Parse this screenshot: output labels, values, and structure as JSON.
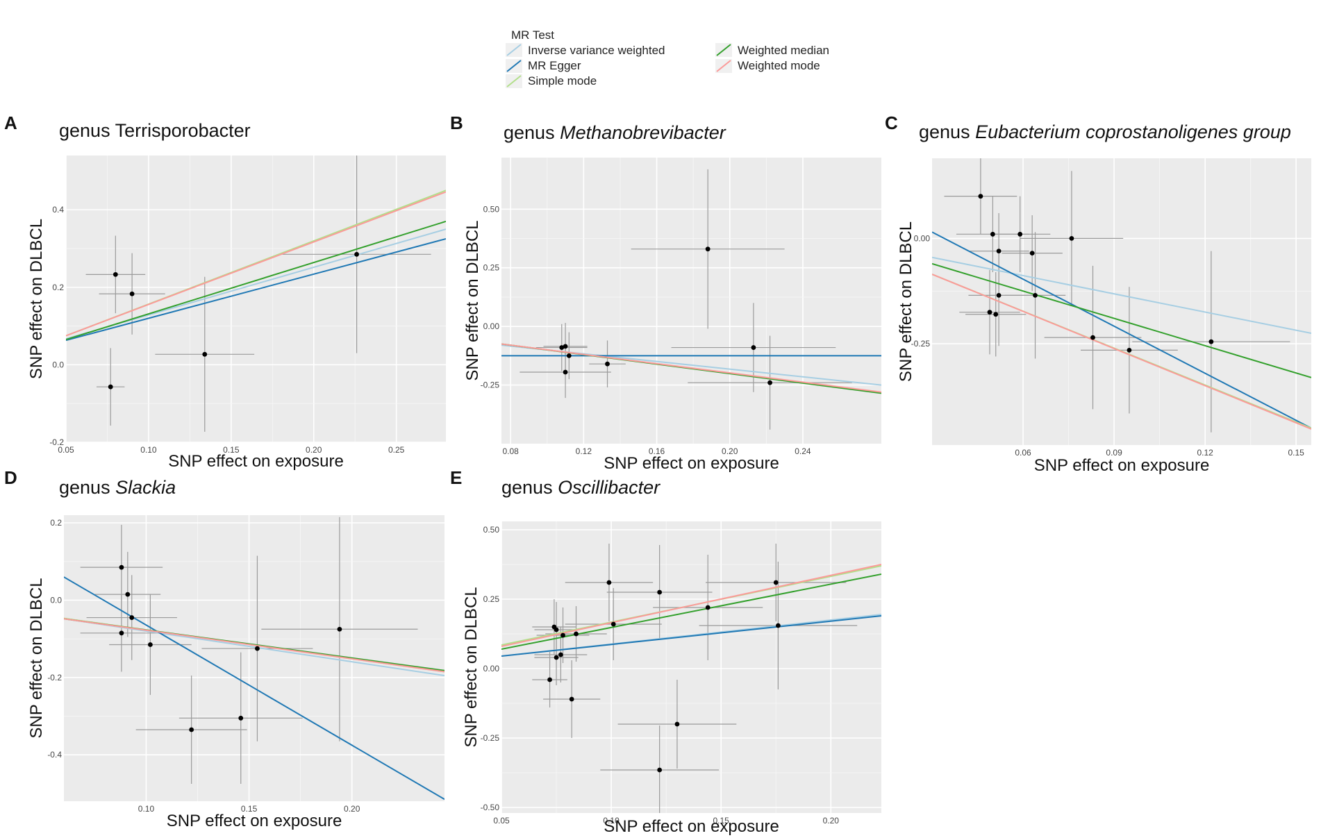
{
  "legend": {
    "title": "MR Test",
    "items": [
      {
        "label": "Inverse variance weighted",
        "color": "#a6cee3"
      },
      {
        "label": "MR Egger",
        "color": "#1f78b4"
      },
      {
        "label": "Simple mode",
        "color": "#b2df8a"
      },
      {
        "label": "Weighted median",
        "color": "#33a02c"
      },
      {
        "label": "Weighted mode",
        "color": "#fb9a99"
      }
    ]
  },
  "chart_data": [
    {
      "type": "scatter",
      "panel": "A",
      "title_prefix": "genus",
      "title_name": "Terrisporobacter",
      "title_italic": false,
      "xlabel": "SNP effect on exposure",
      "ylabel": "SNP effect on DLBCL",
      "xlim": [
        0.05,
        0.28
      ],
      "ylim": [
        -0.2,
        0.54
      ],
      "xticks": [
        0.05,
        0.1,
        0.15,
        0.2,
        0.25
      ],
      "xtick_labels": [
        "0.05",
        "0.10",
        "0.15",
        "0.20",
        "0.25"
      ],
      "yticks": [
        -0.2,
        0.0,
        0.2,
        0.4
      ],
      "ytick_labels": [
        "-0.2",
        "0.0",
        "0.2",
        "0.4"
      ],
      "points": [
        {
          "x": 0.08,
          "y": 0.233,
          "xerr": 0.018,
          "yerr": 0.1
        },
        {
          "x": 0.09,
          "y": 0.183,
          "xerr": 0.02,
          "yerr": 0.105
        },
        {
          "x": 0.077,
          "y": -0.057,
          "xerr": 0.0085,
          "yerr": 0.1
        },
        {
          "x": 0.134,
          "y": 0.027,
          "xerr": 0.03,
          "yerr": 0.2
        },
        {
          "x": 0.226,
          "y": 0.285,
          "xerr": 0.045,
          "yerr": 0.255
        }
      ],
      "lines": [
        {
          "method": "Inverse variance weighted",
          "y0": 0.067,
          "y1": 0.35
        },
        {
          "method": "MR Egger",
          "y0": 0.063,
          "y1": 0.325
        },
        {
          "method": "Simple mode",
          "y0": 0.075,
          "y1": 0.45
        },
        {
          "method": "Weighted median",
          "y0": 0.065,
          "y1": 0.37
        },
        {
          "method": "Weighted mode",
          "y0": 0.075,
          "y1": 0.446
        }
      ]
    },
    {
      "type": "scatter",
      "panel": "B",
      "title_prefix": "genus",
      "title_name": "Methanobrevibacter",
      "title_italic": true,
      "xlabel": "SNP effect on exposure",
      "ylabel": "SNP effect on DLBCL",
      "xlim": [
        0.075,
        0.283
      ],
      "ylim": [
        -0.5,
        0.72
      ],
      "xticks": [
        0.08,
        0.12,
        0.16,
        0.2,
        0.24
      ],
      "xtick_labels": [
        "0.08",
        "0.12",
        "0.16",
        "0.20",
        "0.24"
      ],
      "yticks": [
        -0.25,
        0.0,
        0.25,
        0.5
      ],
      "ytick_labels": [
        "-0.25",
        "0.00",
        "0.25",
        "0.50"
      ],
      "points": [
        {
          "x": 0.108,
          "y": -0.09,
          "xerr": 0.014,
          "yerr": 0.1
        },
        {
          "x": 0.11,
          "y": -0.085,
          "xerr": 0.012,
          "yerr": 0.1
        },
        {
          "x": 0.112,
          "y": -0.125,
          "xerr": 0.008,
          "yerr": 0.1
        },
        {
          "x": 0.11,
          "y": -0.195,
          "xerr": 0.025,
          "yerr": 0.11
        },
        {
          "x": 0.133,
          "y": -0.16,
          "xerr": 0.01,
          "yerr": 0.1
        },
        {
          "x": 0.188,
          "y": 0.33,
          "xerr": 0.042,
          "yerr": 0.34
        },
        {
          "x": 0.213,
          "y": -0.09,
          "xerr": 0.045,
          "yerr": 0.19
        },
        {
          "x": 0.222,
          "y": -0.24,
          "xerr": 0.045,
          "yerr": 0.2
        }
      ],
      "lines": [
        {
          "method": "Inverse variance weighted",
          "y0": -0.08,
          "y1": -0.25
        },
        {
          "method": "MR Egger",
          "y0": -0.125,
          "y1": -0.125
        },
        {
          "method": "Simple mode",
          "y0": -0.075,
          "y1": -0.282
        },
        {
          "method": "Weighted median",
          "y0": -0.075,
          "y1": -0.285
        },
        {
          "method": "Weighted mode",
          "y0": -0.075,
          "y1": -0.28
        }
      ]
    },
    {
      "type": "scatter",
      "panel": "C",
      "title_prefix": "genus",
      "title_name": "Eubacterium coprostanoligenes group",
      "title_italic": true,
      "xlabel": "SNP effect on exposure",
      "ylabel": "SNP effect on DLBCL",
      "xlim": [
        0.03,
        0.155
      ],
      "ylim": [
        -0.49,
        0.19
      ],
      "xticks": [
        0.06,
        0.09,
        0.12,
        0.15
      ],
      "xtick_labels": [
        "0.06",
        "0.09",
        "0.12",
        "0.15"
      ],
      "yticks": [
        -0.25,
        0.0
      ],
      "ytick_labels": [
        "-0.25",
        "0.00"
      ],
      "points": [
        {
          "x": 0.046,
          "y": 0.1,
          "xerr": 0.012,
          "yerr": 0.09
        },
        {
          "x": 0.05,
          "y": 0.01,
          "xerr": 0.012,
          "yerr": 0.09
        },
        {
          "x": 0.059,
          "y": 0.01,
          "xerr": 0.01,
          "yerr": 0.09
        },
        {
          "x": 0.052,
          "y": -0.03,
          "xerr": 0.01,
          "yerr": 0.09
        },
        {
          "x": 0.063,
          "y": -0.035,
          "xerr": 0.01,
          "yerr": 0.09
        },
        {
          "x": 0.076,
          "y": 0.0,
          "xerr": 0.017,
          "yerr": 0.16
        },
        {
          "x": 0.052,
          "y": -0.135,
          "xerr": 0.01,
          "yerr": 0.12
        },
        {
          "x": 0.064,
          "y": -0.135,
          "xerr": 0.01,
          "yerr": 0.15
        },
        {
          "x": 0.049,
          "y": -0.175,
          "xerr": 0.01,
          "yerr": 0.1
        },
        {
          "x": 0.051,
          "y": -0.18,
          "xerr": 0.01,
          "yerr": 0.1
        },
        {
          "x": 0.083,
          "y": -0.235,
          "xerr": 0.016,
          "yerr": 0.17
        },
        {
          "x": 0.095,
          "y": -0.265,
          "xerr": 0.016,
          "yerr": 0.15
        },
        {
          "x": 0.122,
          "y": -0.245,
          "xerr": 0.026,
          "yerr": 0.215
        }
      ],
      "lines": [
        {
          "method": "Inverse variance weighted",
          "y0": -0.045,
          "y1": -0.225
        },
        {
          "method": "MR Egger",
          "y0": 0.015,
          "y1": -0.45
        },
        {
          "method": "Simple mode",
          "y0": -0.085,
          "y1": -0.45
        },
        {
          "method": "Weighted median",
          "y0": -0.06,
          "y1": -0.33
        },
        {
          "method": "Weighted mode",
          "y0": -0.085,
          "y1": -0.452
        }
      ]
    },
    {
      "type": "scatter",
      "panel": "D",
      "title_prefix": "genus",
      "title_name": "Slackia",
      "title_italic": true,
      "xlabel": "SNP effect on exposure",
      "ylabel": "SNP effect on DLBCL",
      "xlim": [
        0.06,
        0.245
      ],
      "ylim": [
        -0.52,
        0.22
      ],
      "xticks": [
        0.1,
        0.15,
        0.2
      ],
      "xtick_labels": [
        "0.10",
        "0.15",
        "0.20"
      ],
      "yticks": [
        -0.4,
        -0.2,
        0.0,
        0.2
      ],
      "ytick_labels": [
        "-0.4",
        "-0.2",
        "0.0",
        "0.2"
      ],
      "points": [
        {
          "x": 0.088,
          "y": 0.085,
          "xerr": 0.02,
          "yerr": 0.11
        },
        {
          "x": 0.091,
          "y": 0.015,
          "xerr": 0.016,
          "yerr": 0.11
        },
        {
          "x": 0.093,
          "y": -0.045,
          "xerr": 0.022,
          "yerr": 0.11
        },
        {
          "x": 0.088,
          "y": -0.085,
          "xerr": 0.02,
          "yerr": 0.1
        },
        {
          "x": 0.102,
          "y": -0.115,
          "xerr": 0.02,
          "yerr": 0.13
        },
        {
          "x": 0.122,
          "y": -0.335,
          "xerr": 0.027,
          "yerr": 0.14
        },
        {
          "x": 0.146,
          "y": -0.305,
          "xerr": 0.03,
          "yerr": 0.17
        },
        {
          "x": 0.154,
          "y": -0.125,
          "xerr": 0.027,
          "yerr": 0.24
        },
        {
          "x": 0.194,
          "y": -0.075,
          "xerr": 0.038,
          "yerr": 0.29
        }
      ],
      "lines": [
        {
          "method": "Inverse variance weighted",
          "y0": -0.048,
          "y1": -0.195
        },
        {
          "method": "MR Egger",
          "y0": 0.06,
          "y1": -0.515
        },
        {
          "method": "Simple mode",
          "y0": -0.047,
          "y1": -0.185
        },
        {
          "method": "Weighted median",
          "y0": -0.048,
          "y1": -0.182
        },
        {
          "method": "Weighted mode",
          "y0": -0.048,
          "y1": -0.185
        }
      ]
    },
    {
      "type": "scatter",
      "panel": "E",
      "title_prefix": "genus",
      "title_name": "Oscillibacter",
      "title_italic": true,
      "xlabel": "SNP effect on exposure",
      "ylabel": "SNP effect on DLBCL",
      "xlim": [
        0.05,
        0.223
      ],
      "ylim": [
        -0.52,
        0.53
      ],
      "xticks": [
        0.05,
        0.1,
        0.15,
        0.2
      ],
      "xtick_labels": [
        "0.05",
        "0.10",
        "0.15",
        "0.20"
      ],
      "yticks": [
        -0.5,
        -0.25,
        0.0,
        0.25,
        0.5
      ],
      "ytick_labels": [
        "-0.50",
        "-0.25",
        "0.00",
        "0.25",
        "0.50"
      ],
      "points": [
        {
          "x": 0.072,
          "y": -0.04,
          "xerr": 0.008,
          "yerr": 0.1
        },
        {
          "x": 0.074,
          "y": 0.15,
          "xerr": 0.01,
          "yerr": 0.1
        },
        {
          "x": 0.075,
          "y": 0.14,
          "xerr": 0.01,
          "yerr": 0.1
        },
        {
          "x": 0.075,
          "y": 0.04,
          "xerr": 0.01,
          "yerr": 0.1
        },
        {
          "x": 0.077,
          "y": 0.05,
          "xerr": 0.012,
          "yerr": 0.1
        },
        {
          "x": 0.078,
          "y": 0.12,
          "xerr": 0.012,
          "yerr": 0.1
        },
        {
          "x": 0.082,
          "y": -0.11,
          "xerr": 0.013,
          "yerr": 0.14
        },
        {
          "x": 0.084,
          "y": 0.125,
          "xerr": 0.014,
          "yerr": 0.1
        },
        {
          "x": 0.099,
          "y": 0.31,
          "xerr": 0.02,
          "yerr": 0.14
        },
        {
          "x": 0.101,
          "y": 0.16,
          "xerr": 0.022,
          "yerr": 0.13
        },
        {
          "x": 0.122,
          "y": 0.275,
          "xerr": 0.024,
          "yerr": 0.17
        },
        {
          "x": 0.13,
          "y": -0.2,
          "xerr": 0.027,
          "yerr": 0.16
        },
        {
          "x": 0.122,
          "y": -0.365,
          "xerr": 0.027,
          "yerr": 0.16
        },
        {
          "x": 0.144,
          "y": 0.22,
          "xerr": 0.025,
          "yerr": 0.19
        },
        {
          "x": 0.175,
          "y": 0.31,
          "xerr": 0.032,
          "yerr": 0.14
        },
        {
          "x": 0.176,
          "y": 0.155,
          "xerr": 0.036,
          "yerr": 0.23
        }
      ],
      "lines": [
        {
          "method": "Inverse variance weighted",
          "y0": 0.045,
          "y1": 0.195
        },
        {
          "method": "MR Egger",
          "y0": 0.045,
          "y1": 0.19
        },
        {
          "method": "Simple mode",
          "y0": 0.085,
          "y1": 0.37
        },
        {
          "method": "Weighted median",
          "y0": 0.07,
          "y1": 0.34
        },
        {
          "method": "Weighted mode",
          "y0": 0.08,
          "y1": 0.375
        }
      ]
    }
  ]
}
